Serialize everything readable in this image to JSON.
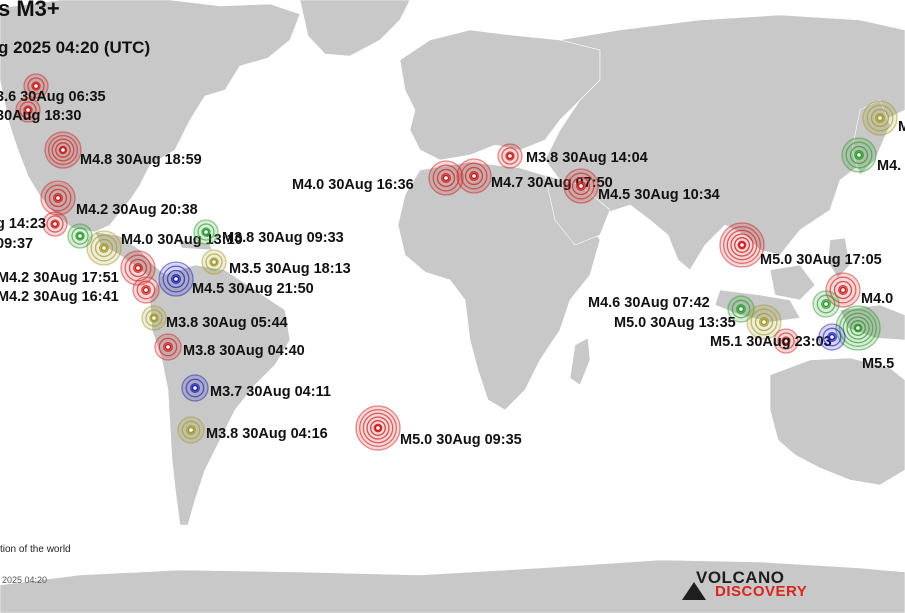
{
  "header": {
    "title": "s M3+",
    "subtitle": "g 2025 04:20 (UTC)"
  },
  "footer": {
    "note": "tion of the world",
    "timestamp": "2025 04:20"
  },
  "logo": {
    "top": "VOLCANO",
    "bottom": "DISCOVERY"
  },
  "colors": {
    "red": "#cc2222",
    "green": "#2e9b2e",
    "olive": "#a39a2a",
    "blue": "#2222b8",
    "land": "#c8c8c8"
  },
  "quakes": [
    {
      "label": "M4.8 30Aug 18:59",
      "color": "red"
    },
    {
      "label": "M4.2 30Aug 20:38",
      "color": "red"
    },
    {
      "label": "M3.8 30Aug 14:04",
      "color": "red"
    },
    {
      "label": "M4.0 30Aug 16:36",
      "color": "red"
    },
    {
      "label": "M4.7 30Aug 07:50",
      "color": "red"
    },
    {
      "label": "M4.5 30Aug 10:34",
      "color": "red"
    },
    {
      "label": "M5.0 30Aug 17:05",
      "color": "red"
    },
    {
      "label": "M4.0 30Aug 13:10",
      "color": "olive"
    },
    {
      "label": "M3.8 30Aug 09:33",
      "color": "green"
    },
    {
      "label": "M3.5 30Aug 18:13",
      "color": "olive"
    },
    {
      "label": "M4.2 30Aug 17:51",
      "color": "red"
    },
    {
      "label": "M4.5 30Aug 21:50",
      "color": "blue"
    },
    {
      "label": "M4.2 30Aug 16:41",
      "color": "red"
    },
    {
      "label": "M3.8 30Aug 05:44",
      "color": "olive"
    },
    {
      "label": "M3.8 30Aug 04:40",
      "color": "red"
    },
    {
      "label": "M3.7 30Aug 04:11",
      "color": "blue"
    },
    {
      "label": "M3.8 30Aug 04:16",
      "color": "olive"
    },
    {
      "label": "M5.0 30Aug 09:35",
      "color": "red"
    },
    {
      "label": "M4.6 30Aug 07:42",
      "color": "green"
    },
    {
      "label": "M5.0 30Aug 13:35",
      "color": "olive"
    },
    {
      "label": "M5.1 30Aug 23:03",
      "color": "red"
    },
    {
      "label": "M4.0",
      "color": "red"
    },
    {
      "label": "M5.5",
      "color": "green"
    },
    {
      "label": "M4.",
      "color": "green"
    },
    {
      "label": "M",
      "color": "olive"
    },
    {
      "label": "3.6 30Aug 06:35",
      "color": "red"
    },
    {
      "label": "30Aug 18:30",
      "color": "red"
    },
    {
      "label": "g 14:23",
      "color": "red"
    },
    {
      "label": "09:37",
      "color": "green"
    },
    {
      "label": "",
      "color": "green"
    },
    {
      "label": "",
      "color": "blue"
    }
  ]
}
